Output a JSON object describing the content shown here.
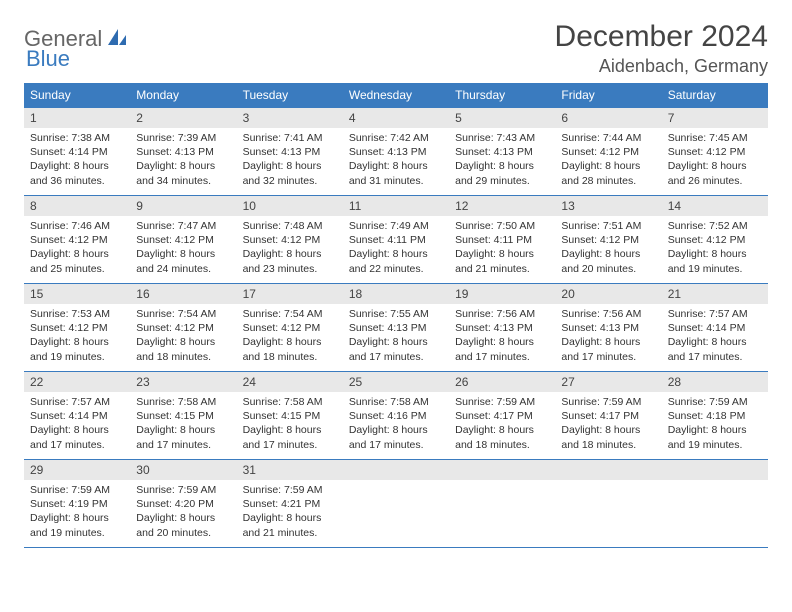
{
  "brand": {
    "part1": "General",
    "part2": "Blue"
  },
  "title": "December 2024",
  "location": "Aidenbach, Germany",
  "colors": {
    "header_bg": "#3a7bbf",
    "header_text": "#ffffff",
    "daynum_bg": "#e8e8e8",
    "rule": "#3a7bbf",
    "body_text": "#333333"
  },
  "weekdays": [
    "Sunday",
    "Monday",
    "Tuesday",
    "Wednesday",
    "Thursday",
    "Friday",
    "Saturday"
  ],
  "weeks": [
    [
      {
        "n": "1",
        "sr": "Sunrise: 7:38 AM",
        "ss": "Sunset: 4:14 PM",
        "d1": "Daylight: 8 hours",
        "d2": "and 36 minutes."
      },
      {
        "n": "2",
        "sr": "Sunrise: 7:39 AM",
        "ss": "Sunset: 4:13 PM",
        "d1": "Daylight: 8 hours",
        "d2": "and 34 minutes."
      },
      {
        "n": "3",
        "sr": "Sunrise: 7:41 AM",
        "ss": "Sunset: 4:13 PM",
        "d1": "Daylight: 8 hours",
        "d2": "and 32 minutes."
      },
      {
        "n": "4",
        "sr": "Sunrise: 7:42 AM",
        "ss": "Sunset: 4:13 PM",
        "d1": "Daylight: 8 hours",
        "d2": "and 31 minutes."
      },
      {
        "n": "5",
        "sr": "Sunrise: 7:43 AM",
        "ss": "Sunset: 4:13 PM",
        "d1": "Daylight: 8 hours",
        "d2": "and 29 minutes."
      },
      {
        "n": "6",
        "sr": "Sunrise: 7:44 AM",
        "ss": "Sunset: 4:12 PM",
        "d1": "Daylight: 8 hours",
        "d2": "and 28 minutes."
      },
      {
        "n": "7",
        "sr": "Sunrise: 7:45 AM",
        "ss": "Sunset: 4:12 PM",
        "d1": "Daylight: 8 hours",
        "d2": "and 26 minutes."
      }
    ],
    [
      {
        "n": "8",
        "sr": "Sunrise: 7:46 AM",
        "ss": "Sunset: 4:12 PM",
        "d1": "Daylight: 8 hours",
        "d2": "and 25 minutes."
      },
      {
        "n": "9",
        "sr": "Sunrise: 7:47 AM",
        "ss": "Sunset: 4:12 PM",
        "d1": "Daylight: 8 hours",
        "d2": "and 24 minutes."
      },
      {
        "n": "10",
        "sr": "Sunrise: 7:48 AM",
        "ss": "Sunset: 4:12 PM",
        "d1": "Daylight: 8 hours",
        "d2": "and 23 minutes."
      },
      {
        "n": "11",
        "sr": "Sunrise: 7:49 AM",
        "ss": "Sunset: 4:11 PM",
        "d1": "Daylight: 8 hours",
        "d2": "and 22 minutes."
      },
      {
        "n": "12",
        "sr": "Sunrise: 7:50 AM",
        "ss": "Sunset: 4:11 PM",
        "d1": "Daylight: 8 hours",
        "d2": "and 21 minutes."
      },
      {
        "n": "13",
        "sr": "Sunrise: 7:51 AM",
        "ss": "Sunset: 4:12 PM",
        "d1": "Daylight: 8 hours",
        "d2": "and 20 minutes."
      },
      {
        "n": "14",
        "sr": "Sunrise: 7:52 AM",
        "ss": "Sunset: 4:12 PM",
        "d1": "Daylight: 8 hours",
        "d2": "and 19 minutes."
      }
    ],
    [
      {
        "n": "15",
        "sr": "Sunrise: 7:53 AM",
        "ss": "Sunset: 4:12 PM",
        "d1": "Daylight: 8 hours",
        "d2": "and 19 minutes."
      },
      {
        "n": "16",
        "sr": "Sunrise: 7:54 AM",
        "ss": "Sunset: 4:12 PM",
        "d1": "Daylight: 8 hours",
        "d2": "and 18 minutes."
      },
      {
        "n": "17",
        "sr": "Sunrise: 7:54 AM",
        "ss": "Sunset: 4:12 PM",
        "d1": "Daylight: 8 hours",
        "d2": "and 18 minutes."
      },
      {
        "n": "18",
        "sr": "Sunrise: 7:55 AM",
        "ss": "Sunset: 4:13 PM",
        "d1": "Daylight: 8 hours",
        "d2": "and 17 minutes."
      },
      {
        "n": "19",
        "sr": "Sunrise: 7:56 AM",
        "ss": "Sunset: 4:13 PM",
        "d1": "Daylight: 8 hours",
        "d2": "and 17 minutes."
      },
      {
        "n": "20",
        "sr": "Sunrise: 7:56 AM",
        "ss": "Sunset: 4:13 PM",
        "d1": "Daylight: 8 hours",
        "d2": "and 17 minutes."
      },
      {
        "n": "21",
        "sr": "Sunrise: 7:57 AM",
        "ss": "Sunset: 4:14 PM",
        "d1": "Daylight: 8 hours",
        "d2": "and 17 minutes."
      }
    ],
    [
      {
        "n": "22",
        "sr": "Sunrise: 7:57 AM",
        "ss": "Sunset: 4:14 PM",
        "d1": "Daylight: 8 hours",
        "d2": "and 17 minutes."
      },
      {
        "n": "23",
        "sr": "Sunrise: 7:58 AM",
        "ss": "Sunset: 4:15 PM",
        "d1": "Daylight: 8 hours",
        "d2": "and 17 minutes."
      },
      {
        "n": "24",
        "sr": "Sunrise: 7:58 AM",
        "ss": "Sunset: 4:15 PM",
        "d1": "Daylight: 8 hours",
        "d2": "and 17 minutes."
      },
      {
        "n": "25",
        "sr": "Sunrise: 7:58 AM",
        "ss": "Sunset: 4:16 PM",
        "d1": "Daylight: 8 hours",
        "d2": "and 17 minutes."
      },
      {
        "n": "26",
        "sr": "Sunrise: 7:59 AM",
        "ss": "Sunset: 4:17 PM",
        "d1": "Daylight: 8 hours",
        "d2": "and 18 minutes."
      },
      {
        "n": "27",
        "sr": "Sunrise: 7:59 AM",
        "ss": "Sunset: 4:17 PM",
        "d1": "Daylight: 8 hours",
        "d2": "and 18 minutes."
      },
      {
        "n": "28",
        "sr": "Sunrise: 7:59 AM",
        "ss": "Sunset: 4:18 PM",
        "d1": "Daylight: 8 hours",
        "d2": "and 19 minutes."
      }
    ],
    [
      {
        "n": "29",
        "sr": "Sunrise: 7:59 AM",
        "ss": "Sunset: 4:19 PM",
        "d1": "Daylight: 8 hours",
        "d2": "and 19 minutes."
      },
      {
        "n": "30",
        "sr": "Sunrise: 7:59 AM",
        "ss": "Sunset: 4:20 PM",
        "d1": "Daylight: 8 hours",
        "d2": "and 20 minutes."
      },
      {
        "n": "31",
        "sr": "Sunrise: 7:59 AM",
        "ss": "Sunset: 4:21 PM",
        "d1": "Daylight: 8 hours",
        "d2": "and 21 minutes."
      },
      null,
      null,
      null,
      null
    ]
  ]
}
